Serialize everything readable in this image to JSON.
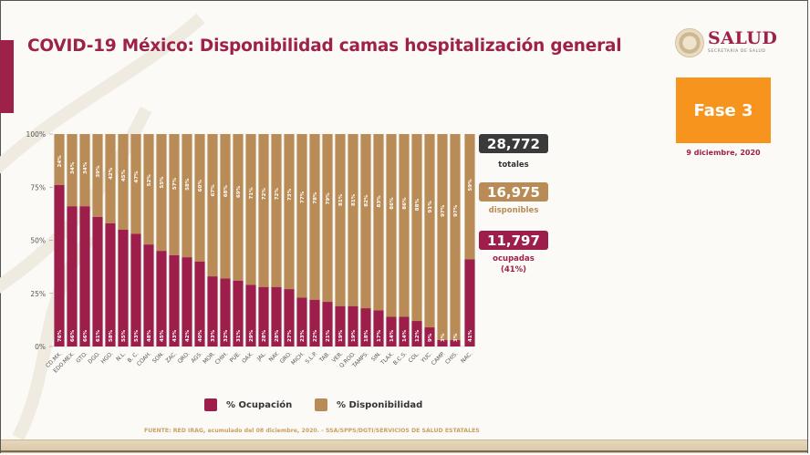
{
  "header": {
    "title": "COVID-19 México: Disponibilidad camas hospitalización general",
    "logo_text": "SALUD",
    "logo_subtitle": "SECRETARÍA DE SALUD"
  },
  "badge": {
    "label": "Fase 3",
    "date": "9 diciembre, 2020"
  },
  "colors": {
    "ocupacion": "#9d1e4a",
    "disponibilidad": "#b98c57",
    "totales_box": "#3a3a3a",
    "accent": "#9d2148",
    "fase": "#f7941d"
  },
  "summary": {
    "totales_value": "28,772",
    "totales_label": "totales",
    "disponibles_value": "16,975",
    "disponibles_label": "disponibles",
    "ocupadas_value": "11,797",
    "ocupadas_label": "ocupadas",
    "ocupadas_pct": "(41%)"
  },
  "legend": {
    "ocupacion": "% Ocupación",
    "disponibilidad": "% Disponibilidad"
  },
  "source": "FUENTE: RED IRAG, acumulado del 08 diciembre, 2020. - SSA/SPPS/DGTI/SERVICIOS DE SALUD ESTATALES",
  "chart_data": {
    "type": "bar",
    "stacked": true,
    "title": "COVID-19 México: Disponibilidad camas hospitalización general",
    "xlabel": "",
    "ylabel": "",
    "ylim": [
      0,
      100
    ],
    "yticks": [
      "0%",
      "25%",
      "50%",
      "75%",
      "100%"
    ],
    "grid": false,
    "legend_position": "bottom",
    "categories": [
      "CD.MX.",
      "EDO.MEX.",
      "GTO.",
      "DGO.",
      "HGO.",
      "N.L.",
      "B. C.",
      "COAH.",
      "SON.",
      "ZAC.",
      "QRO.",
      "AGS.",
      "MOR.",
      "CHIH.",
      "PUE.",
      "OAX.",
      "JAL.",
      "NAY.",
      "GRO.",
      "MICH.",
      "S.L.P.",
      "TAB.",
      "VER.",
      "Q.ROO.",
      "TAMPS.",
      "SIN.",
      "TLAX.",
      "B.C.S.",
      "COL.",
      "YUC.",
      "CAMP.",
      "CHIS.",
      "NAC."
    ],
    "series": [
      {
        "name": "% Ocupación",
        "values": [
          76,
          66,
          66,
          61,
          58,
          55,
          53,
          48,
          45,
          43,
          42,
          40,
          33,
          32,
          31,
          29,
          28,
          28,
          27,
          23,
          22,
          21,
          19,
          19,
          18,
          17,
          14,
          14,
          12,
          9,
          3,
          3,
          41
        ]
      },
      {
        "name": "% Disponibilidad",
        "values": [
          24,
          34,
          34,
          39,
          42,
          45,
          47,
          52,
          55,
          57,
          58,
          60,
          67,
          68,
          69,
          71,
          72,
          72,
          73,
          77,
          78,
          79,
          81,
          81,
          82,
          83,
          86,
          86,
          88,
          91,
          97,
          97,
          59
        ]
      }
    ]
  }
}
